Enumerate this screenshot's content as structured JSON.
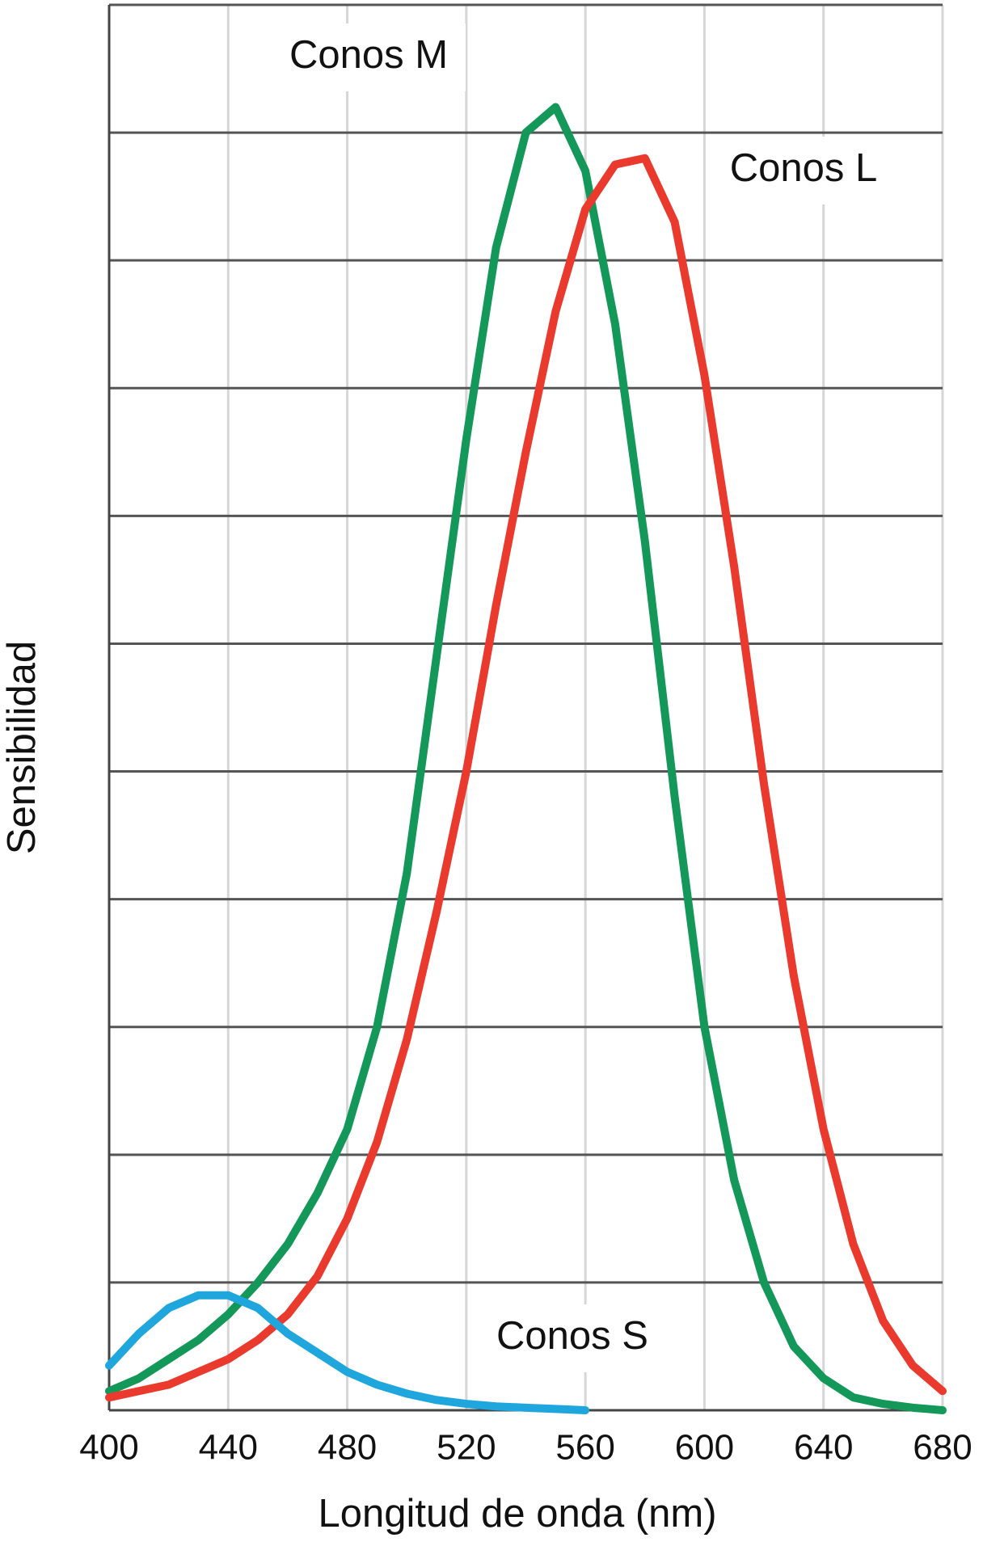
{
  "chart_data": {
    "type": "line",
    "xlabel": "Longitud de onda (nm)",
    "ylabel": "Sensibilidad",
    "x": [
      400,
      410,
      420,
      430,
      440,
      450,
      460,
      470,
      480,
      490,
      500,
      510,
      520,
      530,
      540,
      550,
      560,
      570,
      580,
      590,
      600,
      610,
      620,
      630,
      640,
      650,
      660,
      670,
      680
    ],
    "series": [
      {
        "name": "Conos M",
        "color": "#14985a",
        "values": [
          0.15,
          0.25,
          0.4,
          0.55,
          0.75,
          1.0,
          1.3,
          1.7,
          2.2,
          3.0,
          4.2,
          5.9,
          7.6,
          9.1,
          10.0,
          10.2,
          9.7,
          8.5,
          6.8,
          4.8,
          3.0,
          1.8,
          1.0,
          0.5,
          0.25,
          0.1,
          0.05,
          0.02,
          0
        ]
      },
      {
        "name": "Conos L",
        "color": "#ea3a2e",
        "values": [
          0.1,
          0.15,
          0.2,
          0.3,
          0.4,
          0.55,
          0.75,
          1.05,
          1.5,
          2.1,
          2.9,
          3.9,
          5.0,
          6.3,
          7.5,
          8.6,
          9.4,
          9.75,
          9.8,
          9.3,
          8.1,
          6.6,
          4.9,
          3.4,
          2.2,
          1.3,
          0.7,
          0.35,
          0.15
        ]
      },
      {
        "name": "Conos S",
        "color": "#1fa6dc",
        "values": [
          0.35,
          0.6,
          0.8,
          0.9,
          0.9,
          0.8,
          0.6,
          0.45,
          0.3,
          0.2,
          0.13,
          0.08,
          0.05,
          0.03,
          0.02,
          0.01,
          0,
          null,
          null,
          null,
          null,
          null,
          null,
          null,
          null,
          null,
          null,
          null,
          null
        ]
      }
    ],
    "xlim": [
      400,
      680
    ],
    "xticks": [
      400,
      440,
      480,
      520,
      560,
      600,
      640,
      680
    ],
    "ylim": [
      0,
      11
    ],
    "ygrid": [
      0,
      1,
      2,
      3,
      4,
      5,
      6,
      7,
      8,
      9,
      10,
      11
    ],
    "grid": true
  }
}
